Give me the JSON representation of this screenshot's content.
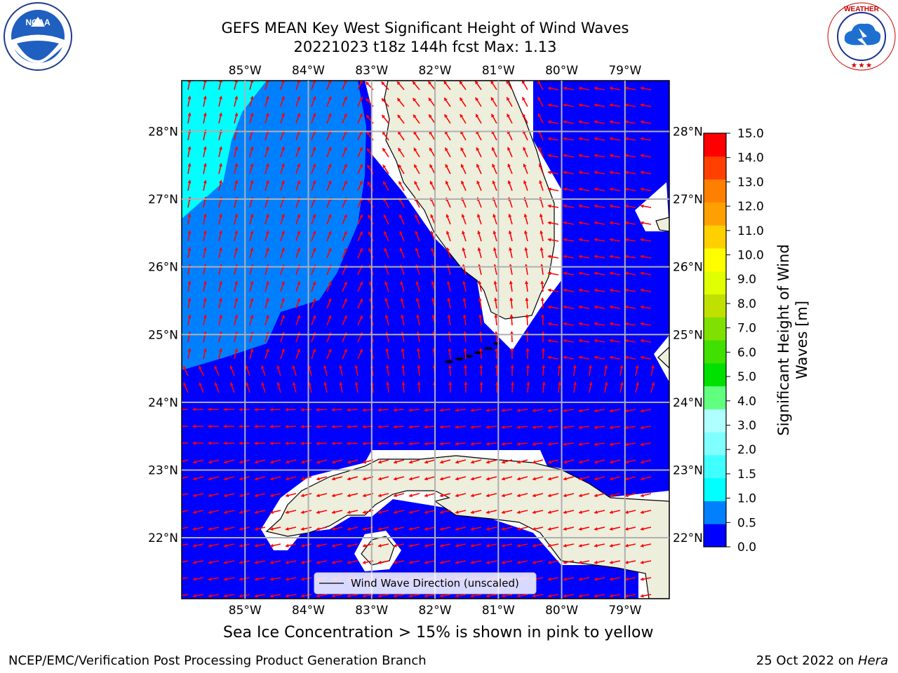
{
  "title_line1": "GEFS MEAN Key West Significant Height of Wind Waves",
  "title_line2": "20221023 t18z 144h fcst   Max: 1.13",
  "legend_label": "Wind Wave Direction (unscaled)",
  "note": "Sea Ice Concentration > 15% is shown in pink to yellow",
  "footer_left": "NCEP/EMC/Verification Post Processing Product Generation Branch",
  "footer_right_date": "25 Oct 2022 on ",
  "footer_right_host": "Hera",
  "logos": {
    "left": "NOAA",
    "right": "NATIONAL WEATHER SERVICE"
  },
  "colorbar": {
    "label_line1": "Significant Height of Wind",
    "label_line2": "Waves [m]",
    "ticks": [
      "0.0",
      "0.5",
      "1.0",
      "1.5",
      "2.0",
      "3.0",
      "4.0",
      "5.0",
      "6.0",
      "7.0",
      "8.0",
      "9.0",
      "10.0",
      "11.0",
      "12.0",
      "13.0",
      "14.0",
      "15.0"
    ],
    "colors": [
      "#0000ff",
      "#0080ff",
      "#00ffff",
      "#40ffff",
      "#80ffff",
      "#b0ffff",
      "#60ff80",
      "#00e000",
      "#40e000",
      "#80e000",
      "#c0e000",
      "#e0ff00",
      "#ffff00",
      "#ffd000",
      "#ffa000",
      "#ff8000",
      "#ff4000",
      "#ff0000"
    ]
  },
  "map": {
    "lon_labels": [
      "85°W",
      "84°W",
      "83°W",
      "82°W",
      "81°W",
      "80°W",
      "79°W"
    ],
    "lat_labels": [
      "28°N",
      "27°N",
      "26°N",
      "25°N",
      "24°N",
      "23°N",
      "22°N"
    ],
    "lon_values": [
      -85,
      -84,
      -83,
      -82,
      -81,
      -80,
      -79
    ],
    "lat_values": [
      28,
      27,
      26,
      25,
      24,
      23,
      22
    ],
    "lon_range": [
      -86.0,
      -78.3
    ],
    "lat_range": [
      21.1,
      28.75
    ],
    "water_color": "#0000ff",
    "band_05_color": "#0080ff",
    "band_10_color": "#00ffff",
    "land_color": "#eeeedd",
    "arrow_color": "#ff0000"
  }
}
